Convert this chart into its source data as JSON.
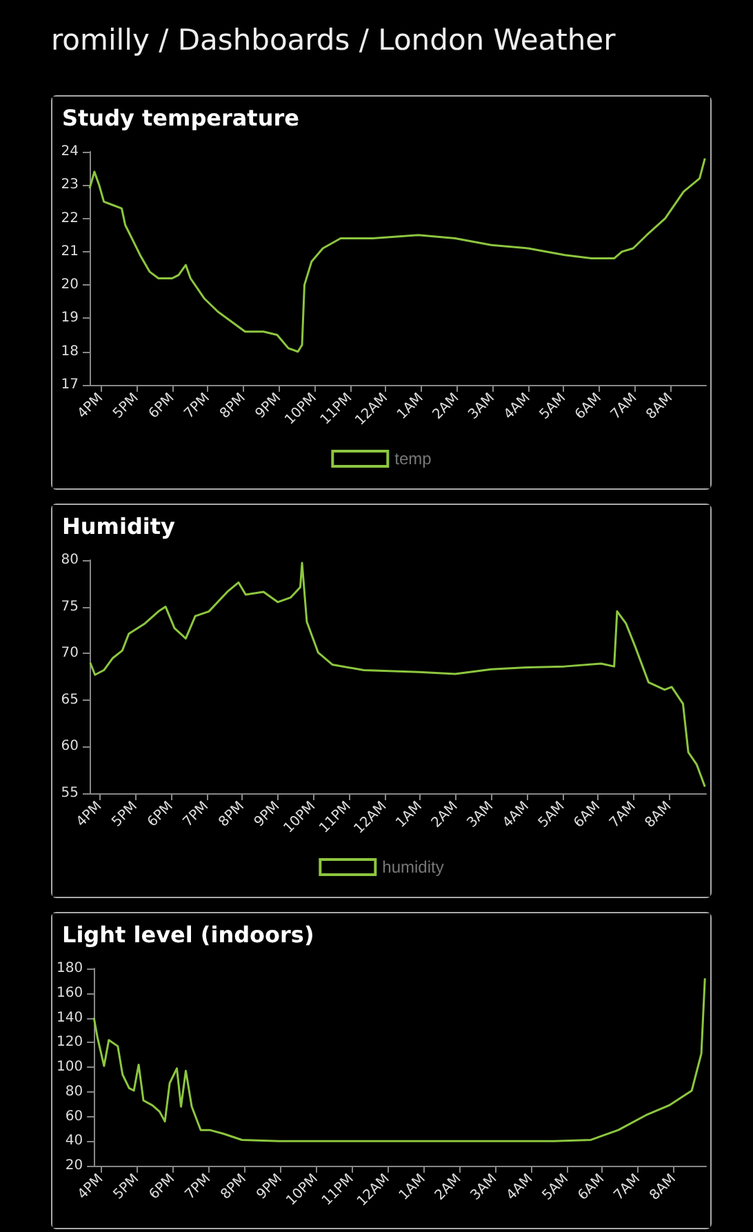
{
  "chart_data": [
    {
      "type": "line",
      "title": "Study temperature",
      "annotations": [
        "romilly / Dashboards / London Weather"
      ],
      "legend": "bottom",
      "xlim": [
        "--01-01T15:41",
        "--01-02T09:00"
      ],
      "xticks": [
        {
          "value": "--01-01T16:00",
          "label": "4PM"
        },
        {
          "value": "--01-01T17:00",
          "label": "5PM"
        },
        {
          "value": "--01-01T18:00",
          "label": "6PM"
        },
        {
          "value": "--01-01T19:00",
          "label": "7PM"
        },
        {
          "value": "--01-01T20:00",
          "label": "8PM"
        },
        {
          "value": "--01-01T21:00",
          "label": "9PM"
        },
        {
          "value": "--01-01T22:00",
          "label": "10PM"
        },
        {
          "value": "--01-01T23:00",
          "label": "11PM"
        },
        {
          "value": "--01-02T00:00",
          "label": "12AM"
        },
        {
          "value": "--01-02T01:00",
          "label": "1AM"
        },
        {
          "value": "--01-02T02:00",
          "label": "2AM"
        },
        {
          "value": "--01-02T03:00",
          "label": "3AM"
        },
        {
          "value": "--01-02T04:00",
          "label": "4AM"
        },
        {
          "value": "--01-02T05:00",
          "label": "5AM"
        },
        {
          "value": "--01-02T06:00",
          "label": "6AM"
        },
        {
          "value": "--01-02T07:00",
          "label": "7AM"
        },
        {
          "value": "--01-02T08:00",
          "label": "8AM"
        }
      ],
      "ylim": [
        17,
        24
      ],
      "yticks": [
        17,
        18,
        19,
        20,
        21,
        22,
        23,
        24
      ],
      "series": [
        {
          "name": "temp",
          "color": "#8dc63f",
          "x": [
            "--01-01T15:41",
            "--01-01T15:49",
            "--01-01T15:57",
            "--01-01T16:05",
            "--01-01T16:20",
            "--01-01T16:35",
            "--01-01T16:41",
            "--01-01T16:55",
            "--01-01T17:06",
            "--01-01T17:22",
            "--01-01T17:37",
            "--01-01T18:00",
            "--01-01T18:11",
            "--01-01T18:23",
            "--01-01T18:31",
            "--01-01T18:54",
            "--01-01T19:17",
            "--01-01T19:40",
            "--01-01T20:03",
            "--01-01T20:34",
            "--01-01T20:57",
            "--01-01T21:16",
            "--01-01T21:32",
            "--01-01T21:39",
            "--01-01T21:43",
            "--01-01T21:55",
            "--01-01T22:14",
            "--01-01T22:44",
            "--01-01T23:38",
            "--01-02T00:55",
            "--01-02T01:57",
            "--01-02T02:58",
            "--01-02T04:00",
            "--01-02T05:02",
            "--01-02T05:47",
            "--01-02T06:25",
            "--01-02T06:38",
            "--01-02T06:57",
            "--01-02T07:20",
            "--01-02T07:51",
            "--01-02T08:22",
            "--01-02T08:49",
            "--01-02T08:58"
          ],
          "values": [
            22.9,
            23.4,
            23.0,
            22.5,
            22.4,
            22.3,
            21.8,
            21.3,
            20.9,
            20.4,
            20.2,
            20.2,
            20.3,
            20.6,
            20.2,
            19.6,
            19.2,
            18.9,
            18.6,
            18.6,
            18.5,
            18.1,
            18.0,
            18.2,
            20.0,
            20.7,
            21.1,
            21.4,
            21.4,
            21.5,
            21.4,
            21.2,
            21.1,
            20.9,
            20.8,
            20.8,
            21.0,
            21.1,
            21.5,
            22.0,
            22.8,
            23.2,
            23.8
          ]
        }
      ]
    },
    {
      "type": "line",
      "title": "Humidity",
      "legend": "bottom",
      "xlim": [
        "--01-01T15:43",
        "--01-02T09:02"
      ],
      "xticks": [
        {
          "value": "--01-01T16:00",
          "label": "4PM"
        },
        {
          "value": "--01-01T17:00",
          "label": "5PM"
        },
        {
          "value": "--01-01T18:00",
          "label": "6PM"
        },
        {
          "value": "--01-01T19:00",
          "label": "7PM"
        },
        {
          "value": "--01-01T20:00",
          "label": "8PM"
        },
        {
          "value": "--01-01T21:00",
          "label": "9PM"
        },
        {
          "value": "--01-01T22:00",
          "label": "10PM"
        },
        {
          "value": "--01-01T23:00",
          "label": "11PM"
        },
        {
          "value": "--01-02T00:00",
          "label": "12AM"
        },
        {
          "value": "--01-02T01:00",
          "label": "1AM"
        },
        {
          "value": "--01-02T02:00",
          "label": "2AM"
        },
        {
          "value": "--01-02T03:00",
          "label": "3AM"
        },
        {
          "value": "--01-02T04:00",
          "label": "4AM"
        },
        {
          "value": "--01-02T05:00",
          "label": "5AM"
        },
        {
          "value": "--01-02T06:00",
          "label": "6AM"
        },
        {
          "value": "--01-02T07:00",
          "label": "7AM"
        },
        {
          "value": "--01-02T08:00",
          "label": "8AM"
        }
      ],
      "ylim": [
        55,
        80
      ],
      "yticks": [
        55,
        60,
        65,
        70,
        75,
        80
      ],
      "series": [
        {
          "name": "humidity",
          "color": "#8dc63f",
          "x": [
            "--01-01T15:44",
            "--01-01T15:52",
            "--01-01T16:07",
            "--01-01T16:22",
            "--01-01T16:38",
            "--01-01T16:49",
            "--01-01T17:16",
            "--01-01T17:39",
            "--01-01T17:51",
            "--01-01T18:06",
            "--01-01T18:25",
            "--01-01T18:41",
            "--01-01T19:04",
            "--01-01T19:35",
            "--01-01T19:54",
            "--01-01T20:06",
            "--01-01T20:36",
            "--01-01T21:00",
            "--01-01T21:22",
            "--01-01T21:38",
            "--01-01T21:41",
            "--01-01T21:49",
            "--01-01T22:08",
            "--01-01T22:32",
            "--01-01T23:25",
            "--01-02T00:58",
            "--01-02T01:59",
            "--01-02T03:00",
            "--01-02T04:02",
            "--01-02T05:03",
            "--01-02T06:05",
            "--01-02T06:27",
            "--01-02T06:32",
            "--01-02T06:47",
            "--01-02T07:02",
            "--01-02T07:25",
            "--01-02T07:52",
            "--01-02T08:04",
            "--01-02T08:23",
            "--01-02T08:32",
            "--01-02T08:46",
            "--01-02T09:00"
          ],
          "values": [
            69.0,
            67.7,
            68.2,
            69.5,
            70.3,
            72.1,
            73.2,
            74.5,
            75.0,
            72.7,
            71.6,
            74.0,
            74.5,
            76.6,
            77.6,
            76.3,
            76.6,
            75.5,
            76.0,
            77.1,
            79.7,
            73.4,
            70.1,
            68.8,
            68.2,
            68.0,
            67.8,
            68.3,
            68.5,
            68.6,
            68.9,
            68.6,
            74.5,
            73.2,
            70.8,
            66.9,
            66.1,
            66.4,
            64.6,
            59.4,
            58.1,
            55.7
          ]
        }
      ]
    },
    {
      "type": "line",
      "title": "Light level (indoors)",
      "xlim": [
        "--01-01T15:48",
        "--01-02T08:54"
      ],
      "xticks": [
        {
          "value": "--01-01T16:00",
          "label": "4PM"
        },
        {
          "value": "--01-01T17:00",
          "label": "5PM"
        },
        {
          "value": "--01-01T18:00",
          "label": "6PM"
        },
        {
          "value": "--01-01T19:00",
          "label": "7PM"
        },
        {
          "value": "--01-01T20:00",
          "label": "8PM"
        },
        {
          "value": "--01-01T21:00",
          "label": "9PM"
        },
        {
          "value": "--01-01T22:00",
          "label": "10PM"
        },
        {
          "value": "--01-01T23:00",
          "label": "11PM"
        },
        {
          "value": "--01-02T00:00",
          "label": "12AM"
        },
        {
          "value": "--01-02T01:00",
          "label": "1AM"
        },
        {
          "value": "--01-02T02:00",
          "label": "2AM"
        },
        {
          "value": "--01-02T03:00",
          "label": "3AM"
        },
        {
          "value": "--01-02T04:00",
          "label": "4AM"
        },
        {
          "value": "--01-02T05:00",
          "label": "5AM"
        },
        {
          "value": "--01-02T06:00",
          "label": "6AM"
        },
        {
          "value": "--01-02T07:00",
          "label": "7AM"
        },
        {
          "value": "--01-02T08:00",
          "label": "8AM"
        }
      ],
      "ylim": [
        20,
        180
      ],
      "yticks": [
        20,
        40,
        60,
        80,
        100,
        120,
        140,
        160,
        180
      ],
      "series": [
        {
          "color": "#8dc63f",
          "x": [
            "--01-01T15:48",
            "--01-01T15:54",
            "--01-01T16:05",
            "--01-01T16:13",
            "--01-01T16:28",
            "--01-01T16:36",
            "--01-01T16:47",
            "--01-01T16:55",
            "--01-01T17:03",
            "--01-01T17:11",
            "--01-01T17:26",
            "--01-01T17:38",
            "--01-01T17:47",
            "--01-01T17:55",
            "--01-01T18:07",
            "--01-01T18:14",
            "--01-01T18:22",
            "--01-01T18:32",
            "--01-01T18:47",
            "--01-01T19:02",
            "--01-01T19:25",
            "--01-01T19:56",
            "--01-01T20:58",
            "--01-01T23:32",
            "--01-02T02:05",
            "--01-02T04:39",
            "--01-02T05:41",
            "--01-02T06:27",
            "--01-02T07:13",
            "--01-02T07:52",
            "--01-02T08:30",
            "--01-02T08:46",
            "--01-02T08:52"
          ],
          "values": [
            140,
            124,
            101,
            122,
            117,
            94,
            83,
            81,
            102,
            73,
            69,
            64,
            56,
            87,
            99,
            68,
            97,
            68,
            49,
            49,
            46,
            41,
            40,
            40,
            40,
            40,
            41,
            49,
            61,
            69,
            81,
            111,
            172
          ]
        }
      ]
    }
  ]
}
